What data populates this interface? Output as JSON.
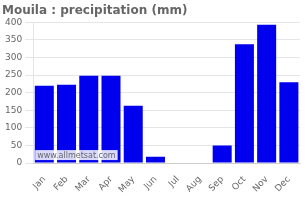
{
  "chart_data": {
    "type": "bar",
    "title": "Mouila : precipitation (mm)",
    "categories": [
      "Jan",
      "Feb",
      "Mar",
      "Apr",
      "May",
      "Jun",
      "Jul",
      "Aug",
      "Sep",
      "Oct",
      "Nov",
      "Dec"
    ],
    "values": [
      220,
      223,
      248,
      248,
      163,
      18,
      2,
      2,
      50,
      338,
      393,
      230
    ],
    "color": "#0000ee",
    "ylim": [
      0,
      400
    ],
    "yticks": [
      0,
      50,
      100,
      150,
      200,
      250,
      300,
      350,
      400
    ],
    "grid": true,
    "annotations": [
      "www.allmetsat.com"
    ]
  }
}
